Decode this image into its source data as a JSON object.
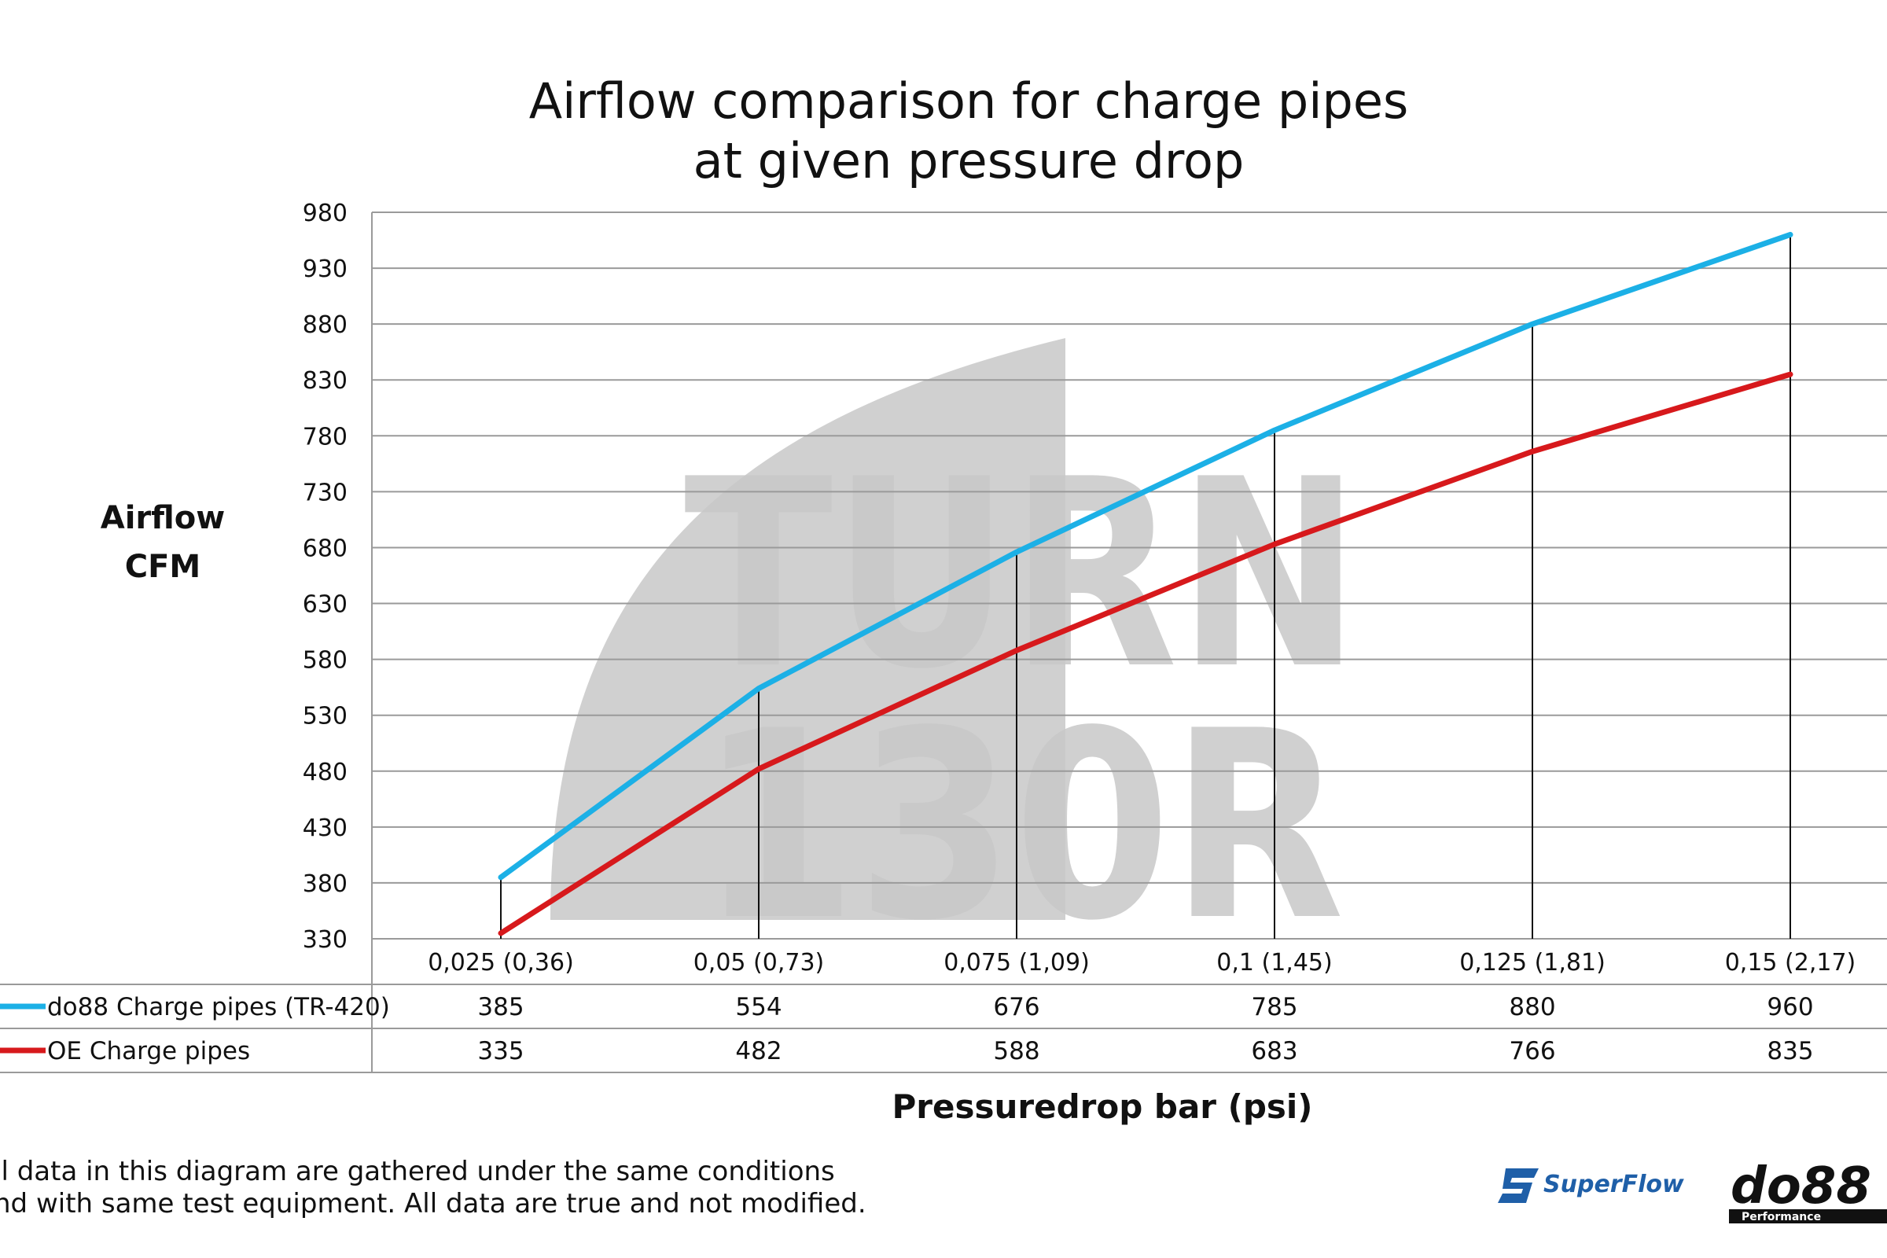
{
  "chart_data": {
    "type": "line",
    "title": [
      "Airflow comparison for charge pipes",
      "at given pressure drop"
    ],
    "ylabel": [
      "Airflow",
      "CFM"
    ],
    "xlabel": "Pressuredrop bar (psi)",
    "categories": [
      "0,025 (0,36)",
      "0,05 (0,73)",
      "0,075 (1,09)",
      "0,1 (1,45)",
      "0,125 (1,81)",
      "0,15 (2,17)"
    ],
    "ylim": [
      330,
      980
    ],
    "yticks": [
      330,
      380,
      430,
      480,
      530,
      580,
      630,
      680,
      730,
      780,
      830,
      880,
      930,
      980
    ],
    "grid": true,
    "data_table": true,
    "series": [
      {
        "name": "do88 Charge pipes (TR-420)",
        "color": "#1cb0e6",
        "values": [
          385,
          554,
          676,
          785,
          880,
          960
        ]
      },
      {
        "name": "OE Charge pipes",
        "color": "#d7191c",
        "values": [
          335,
          482,
          588,
          683,
          766,
          835
        ]
      }
    ]
  },
  "watermark": {
    "line1": "TURN",
    "line2": "130R",
    "color": "#c8c8c8"
  },
  "footnote": [
    "ll data in this diagram are gathered under the same conditions",
    "nd with same test equipment. All data are true and not modified."
  ],
  "logos": {
    "superflow": "SuperFlow",
    "do88": "do88",
    "do88_sub": "Performance"
  }
}
